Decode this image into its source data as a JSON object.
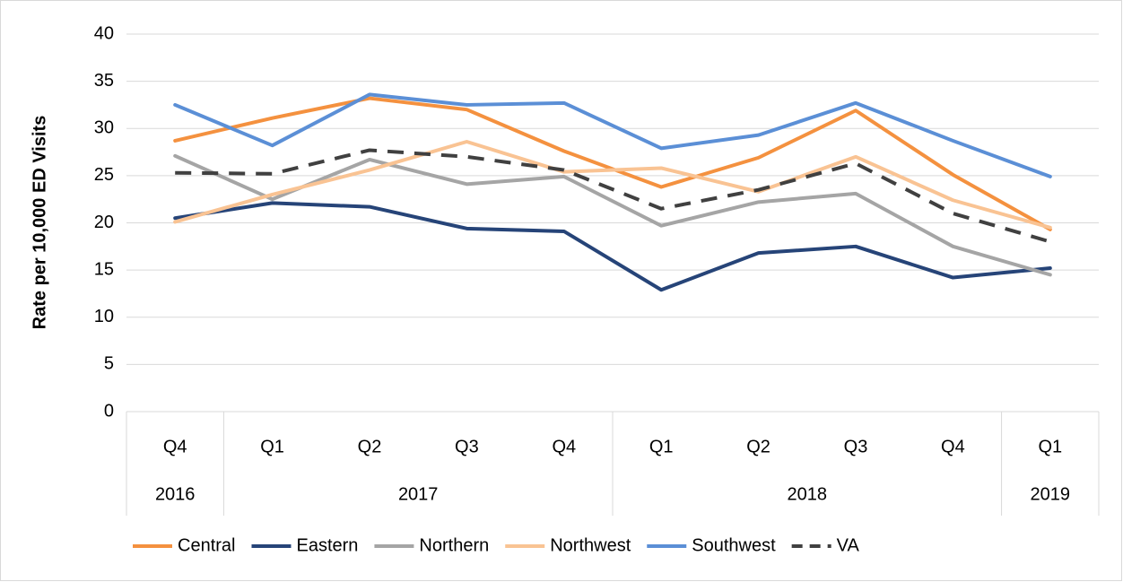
{
  "chart_data": {
    "type": "line",
    "y_label": "Rate per 10,000 ED Visits",
    "categories": [
      "Q4",
      "Q1",
      "Q2",
      "Q3",
      "Q4",
      "Q1",
      "Q2",
      "Q3",
      "Q4",
      "Q1"
    ],
    "year_categories": [
      "2016",
      "2017",
      null,
      null,
      null,
      "2018",
      null,
      null,
      null,
      "2019"
    ],
    "ylim": [
      0,
      40
    ],
    "yticks": [
      0,
      5,
      10,
      15,
      20,
      25,
      30,
      35,
      40
    ],
    "grid": true,
    "legend": "bottom",
    "series": [
      {
        "name": "Central",
        "color": "#f4913f",
        "values": [
          28.7,
          31.1,
          33.2,
          32.0,
          27.6,
          23.8,
          26.9,
          31.9,
          25.1,
          19.3
        ]
      },
      {
        "name": "Eastern",
        "color": "#264478",
        "values": [
          20.5,
          22.1,
          21.7,
          19.4,
          19.1,
          12.9,
          16.8,
          17.5,
          14.2,
          15.2
        ]
      },
      {
        "name": "Northern",
        "color": "#a5a5a5",
        "values": [
          27.1,
          22.5,
          26.7,
          24.1,
          24.9,
          19.7,
          22.2,
          23.1,
          17.5,
          14.5
        ]
      },
      {
        "name": "Northwest",
        "color": "#f9c393",
        "values": [
          20.1,
          23.0,
          25.6,
          28.6,
          25.4,
          25.8,
          23.3,
          27.0,
          22.4,
          19.5
        ]
      },
      {
        "name": "Southwest",
        "color": "#5b8fd6",
        "values": [
          32.5,
          28.2,
          33.6,
          32.5,
          32.7,
          27.9,
          29.3,
          32.7,
          28.7,
          24.9
        ]
      },
      {
        "name": "VA",
        "color": "#404040",
        "dashed": true,
        "values": [
          25.3,
          25.2,
          27.7,
          27.0,
          25.6,
          21.5,
          23.5,
          26.3,
          21.0,
          18.0
        ]
      }
    ]
  }
}
